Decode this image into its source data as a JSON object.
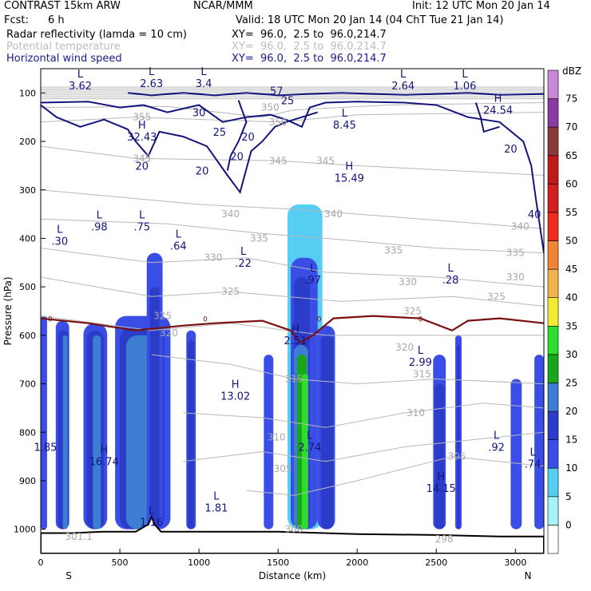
{
  "header": {
    "title": "CONTRAST 15km ARW",
    "org": "NCAR/MMM",
    "init": "Init: 12 UTC Mon 20 Jan 14",
    "fcst_label": "Fcst:",
    "fcst_value": "6 h",
    "valid": "Valid: 18 UTC Mon 20 Jan 14 (04 ChT Tue 21 Jan 14)",
    "fields": [
      {
        "name": "Radar reflectivity (lamda = 10 cm)",
        "xy": "XY=  96.0,  2.5 to  96.0,214.7",
        "color": "#000000"
      },
      {
        "name": "Potential temperature",
        "xy": "XY=  96.0,  2.5 to  96.0,214.7",
        "color": "#bdbdbd"
      },
      {
        "name": "Horizontal wind speed",
        "xy": "XY=  96.0,  2.5 to  96.0,214.7",
        "color": "#1a1a8c"
      }
    ]
  },
  "chart_data": {
    "type": "cross-section",
    "xlabel": "Distance (km)",
    "ylabel": "Pressure (hPa)",
    "xlim": [
      0,
      3180
    ],
    "ylim": [
      1050,
      50
    ],
    "x_ticks": [
      0,
      500,
      1000,
      1500,
      2000,
      2500,
      3000
    ],
    "y_ticks": [
      100,
      200,
      300,
      400,
      500,
      600,
      700,
      800,
      900,
      1000
    ],
    "x_end_labels": {
      "left": "S",
      "right": "N"
    },
    "colorbar": {
      "unit": "dBZ",
      "levels": [
        0,
        5,
        10,
        15,
        20,
        25,
        30,
        35,
        40,
        45,
        50,
        55,
        60,
        65,
        70,
        75
      ],
      "colors": [
        "#ffffff",
        "#a4f5f7",
        "#56cdf2",
        "#3a4ee6",
        "#2a3cc8",
        "#3d7ed2",
        "#19a619",
        "#2ede2e",
        "#f5ea32",
        "#f2b44c",
        "#ef8533",
        "#ee2b1e",
        "#d21e1e",
        "#bf1a1a",
        "#8b3a3a",
        "#8a3aa0",
        "#c989d6"
      ]
    },
    "reflectivity_columns": [
      {
        "x": [
          0,
          40
        ],
        "top": 560,
        "dbz": 10
      },
      {
        "x": [
          95,
          180
        ],
        "top": 570,
        "dbz": 10
      },
      {
        "x": [
          110,
          175
        ],
        "top": 590,
        "dbz": 15
      },
      {
        "x": [
          140,
          170
        ],
        "top": 600,
        "dbz": 20
      },
      {
        "x": [
          270,
          420
        ],
        "top": 575,
        "dbz": 10
      },
      {
        "x": [
          290,
          400
        ],
        "top": 590,
        "dbz": 15
      },
      {
        "x": [
          330,
          380
        ],
        "top": 600,
        "dbz": 20
      },
      {
        "x": [
          470,
          820
        ],
        "top": 560,
        "dbz": 10
      },
      {
        "x": [
          500,
          780
        ],
        "top": 585,
        "dbz": 15
      },
      {
        "x": [
          540,
          760
        ],
        "top": 600,
        "dbz": 20
      },
      {
        "x": [
          670,
          770
        ],
        "top": 430,
        "dbz": 10
      },
      {
        "x": [
          690,
          750
        ],
        "top": 500,
        "dbz": 15
      },
      {
        "x": [
          920,
          980
        ],
        "top": 590,
        "dbz": 10
      },
      {
        "x": [
          930,
          970
        ],
        "top": 610,
        "dbz": 15
      },
      {
        "x": [
          1410,
          1470
        ],
        "top": 640,
        "dbz": 10
      },
      {
        "x": [
          1560,
          1780
        ],
        "top": 330,
        "dbz": 5
      },
      {
        "x": [
          1580,
          1750
        ],
        "top": 440,
        "dbz": 10
      },
      {
        "x": [
          1600,
          1700
        ],
        "top": 480,
        "dbz": 15
      },
      {
        "x": [
          1600,
          1690
        ],
        "top": 620,
        "dbz": 20
      },
      {
        "x": [
          1620,
          1680
        ],
        "top": 640,
        "dbz": 25
      },
      {
        "x": [
          1650,
          1690
        ],
        "top": 680,
        "dbz": 30
      },
      {
        "x": [
          1750,
          1860
        ],
        "top": 580,
        "dbz": 10
      },
      {
        "x": [
          1770,
          1850
        ],
        "top": 600,
        "dbz": 15
      },
      {
        "x": [
          2480,
          2560
        ],
        "top": 640,
        "dbz": 10
      },
      {
        "x": [
          2490,
          2550
        ],
        "top": 700,
        "dbz": 15
      },
      {
        "x": [
          2620,
          2660
        ],
        "top": 600,
        "dbz": 10
      },
      {
        "x": [
          2630,
          2650
        ],
        "top": 620,
        "dbz": 15
      },
      {
        "x": [
          2970,
          3040
        ],
        "top": 690,
        "dbz": 10
      },
      {
        "x": [
          3120,
          3180
        ],
        "top": 640,
        "dbz": 10
      }
    ],
    "wind_contours_ms": [
      20,
      25,
      30
    ],
    "theta_labels": [
      {
        "x": 640,
        "p": 150,
        "t": "355"
      },
      {
        "x": 1450,
        "p": 130,
        "t": "350"
      },
      {
        "x": 1500,
        "p": 160,
        "t": "350"
      },
      {
        "x": 640,
        "p": 235,
        "t": "345"
      },
      {
        "x": 1500,
        "p": 240,
        "t": "345"
      },
      {
        "x": 1800,
        "p": 240,
        "t": "345"
      },
      {
        "x": 1200,
        "p": 350,
        "t": "340"
      },
      {
        "x": 1850,
        "p": 350,
        "t": "340"
      },
      {
        "x": 3030,
        "p": 375,
        "t": "340"
      },
      {
        "x": 1380,
        "p": 400,
        "t": "335"
      },
      {
        "x": 2230,
        "p": 425,
        "t": "335"
      },
      {
        "x": 3000,
        "p": 430,
        "t": "335"
      },
      {
        "x": 1090,
        "p": 440,
        "t": "330"
      },
      {
        "x": 2320,
        "p": 490,
        "t": "330"
      },
      {
        "x": 3000,
        "p": 480,
        "t": "330"
      },
      {
        "x": 1200,
        "p": 510,
        "t": "325"
      },
      {
        "x": 2350,
        "p": 550,
        "t": "325"
      },
      {
        "x": 2880,
        "p": 520,
        "t": "325"
      },
      {
        "x": 770,
        "p": 560,
        "t": "325"
      },
      {
        "x": 810,
        "p": 595,
        "t": "320"
      },
      {
        "x": 2300,
        "p": 625,
        "t": "320"
      },
      {
        "x": 2410,
        "p": 680,
        "t": "315"
      },
      {
        "x": 1600,
        "p": 690,
        "t": "315"
      },
      {
        "x": 2370,
        "p": 760,
        "t": "310"
      },
      {
        "x": 1490,
        "p": 810,
        "t": "310"
      },
      {
        "x": 2630,
        "p": 850,
        "t": "305"
      },
      {
        "x": 1530,
        "p": 875,
        "t": "305"
      },
      {
        "x": 1600,
        "p": 1000,
        "t": "300"
      },
      {
        "x": 240,
        "p": 1015,
        "t": "301.1"
      },
      {
        "x": 2550,
        "p": 1020,
        "t": "298"
      }
    ],
    "extrema_labels": [
      {
        "x": 250,
        "p": 85,
        "l": "L",
        "v": "3.62"
      },
      {
        "x": 700,
        "p": 80,
        "l": "L",
        "v": "2.63"
      },
      {
        "x": 1030,
        "p": 80,
        "l": "L",
        "v": "3.4"
      },
      {
        "x": 1480,
        "p": 95,
        "l": "",
        "v": ".57"
      },
      {
        "x": 2290,
        "p": 85,
        "l": "L",
        "v": "2.64"
      },
      {
        "x": 2680,
        "p": 85,
        "l": "L",
        "v": "1.06"
      },
      {
        "x": 1920,
        "p": 165,
        "l": "L",
        "v": "8.45"
      },
      {
        "x": 2890,
        "p": 135,
        "l": "H",
        "v": "24.54"
      },
      {
        "x": 640,
        "p": 190,
        "l": "H",
        "v": "32.43"
      },
      {
        "x": 1950,
        "p": 275,
        "l": "H",
        "v": "15.49"
      },
      {
        "x": 120,
        "p": 405,
        "l": "L",
        "v": ".30"
      },
      {
        "x": 370,
        "p": 375,
        "l": "L",
        "v": ".98"
      },
      {
        "x": 640,
        "p": 375,
        "l": "L",
        "v": ".75"
      },
      {
        "x": 870,
        "p": 415,
        "l": "L",
        "v": ".64"
      },
      {
        "x": 1280,
        "p": 450,
        "l": "L",
        "v": ".22"
      },
      {
        "x": 1720,
        "p": 485,
        "l": "L",
        "v": ".97"
      },
      {
        "x": 2590,
        "p": 485,
        "l": "L",
        "v": ".28"
      },
      {
        "x": 1610,
        "p": 610,
        "l": "H",
        "v": "2.51"
      },
      {
        "x": 2400,
        "p": 655,
        "l": "L",
        "v": "2.99"
      },
      {
        "x": 1230,
        "p": 725,
        "l": "H",
        "v": "13.02"
      },
      {
        "x": 30,
        "p": 830,
        "l": "",
        "v": "1.85"
      },
      {
        "x": 1700,
        "p": 830,
        "l": "L",
        "v": "2.74"
      },
      {
        "x": 2880,
        "p": 830,
        "l": "L",
        "v": ".92"
      },
      {
        "x": 3110,
        "p": 865,
        "l": "L",
        "v": ".74"
      },
      {
        "x": 400,
        "p": 860,
        "l": "H",
        "v": "16.74"
      },
      {
        "x": 2530,
        "p": 915,
        "l": "H",
        "v": "14.15"
      },
      {
        "x": 700,
        "p": 985,
        "l": "L",
        "v": "1.16"
      },
      {
        "x": 1110,
        "p": 955,
        "l": "L",
        "v": "1.81"
      }
    ],
    "freezing_level_label": "0"
  }
}
